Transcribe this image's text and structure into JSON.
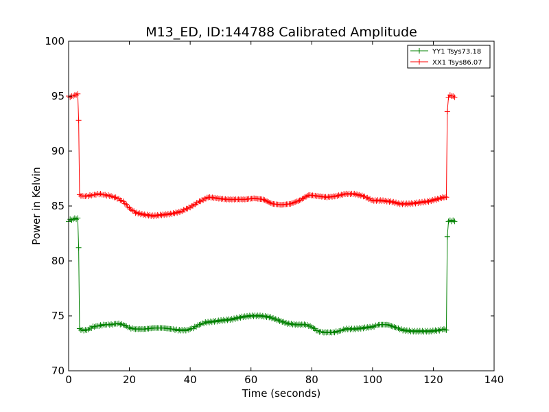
{
  "chart_data": {
    "type": "line",
    "title": "M13_ED, ID:144788 Calibrated Amplitude",
    "xlabel": "Time (seconds)",
    "ylabel": "Power in Kelvin",
    "xlim": [
      0,
      140
    ],
    "ylim": [
      70,
      100
    ],
    "xticks": [
      "0",
      "20",
      "40",
      "60",
      "80",
      "100",
      "120",
      "140"
    ],
    "yticks": [
      "70",
      "75",
      "80",
      "85",
      "90",
      "95",
      "100"
    ],
    "grid": false,
    "legend_position": "top-right",
    "series": [
      {
        "name": "YY1 Tsys73.18",
        "color": "#008000",
        "marker": "plus",
        "points": [
          [
            0.0,
            83.6
          ],
          [
            0.5,
            83.8
          ],
          [
            1.0,
            83.7
          ],
          [
            1.5,
            83.8
          ],
          [
            2.0,
            83.9
          ],
          [
            2.5,
            83.8
          ],
          [
            3.0,
            83.9
          ],
          [
            3.3,
            81.2
          ],
          [
            3.6,
            73.8
          ],
          [
            4.5,
            73.7
          ],
          [
            6.0,
            73.7
          ],
          [
            8.0,
            74.0
          ],
          [
            10.0,
            74.1
          ],
          [
            12.0,
            74.2
          ],
          [
            14.0,
            74.2
          ],
          [
            16.0,
            74.3
          ],
          [
            18.0,
            74.2
          ],
          [
            20.0,
            73.9
          ],
          [
            22.0,
            73.8
          ],
          [
            25.0,
            73.8
          ],
          [
            28.0,
            73.9
          ],
          [
            31.0,
            73.9
          ],
          [
            34.0,
            73.8
          ],
          [
            36.0,
            73.7
          ],
          [
            39.0,
            73.7
          ],
          [
            41.0,
            73.9
          ],
          [
            43.0,
            74.2
          ],
          [
            45.0,
            74.4
          ],
          [
            48.0,
            74.5
          ],
          [
            51.0,
            74.6
          ],
          [
            54.0,
            74.7
          ],
          [
            57.0,
            74.9
          ],
          [
            60.0,
            75.0
          ],
          [
            63.0,
            75.0
          ],
          [
            66.0,
            74.9
          ],
          [
            69.0,
            74.6
          ],
          [
            72.0,
            74.3
          ],
          [
            75.0,
            74.2
          ],
          [
            78.0,
            74.2
          ],
          [
            80.0,
            74.0
          ],
          [
            82.0,
            73.6
          ],
          [
            84.0,
            73.5
          ],
          [
            87.0,
            73.5
          ],
          [
            89.0,
            73.6
          ],
          [
            91.0,
            73.8
          ],
          [
            94.0,
            73.8
          ],
          [
            97.0,
            73.9
          ],
          [
            100.0,
            74.0
          ],
          [
            102.0,
            74.2
          ],
          [
            105.0,
            74.2
          ],
          [
            108.0,
            73.9
          ],
          [
            110.0,
            73.7
          ],
          [
            113.0,
            73.6
          ],
          [
            116.0,
            73.6
          ],
          [
            119.0,
            73.6
          ],
          [
            122.0,
            73.7
          ],
          [
            123.5,
            73.8
          ],
          [
            124.3,
            73.7
          ],
          [
            124.6,
            82.2
          ],
          [
            125.0,
            83.6
          ],
          [
            125.5,
            83.7
          ],
          [
            126.0,
            83.6
          ],
          [
            126.5,
            83.7
          ],
          [
            127.0,
            83.6
          ]
        ]
      },
      {
        "name": "XX1 Tsys86.07",
        "color": "#ff0000",
        "marker": "plus",
        "points": [
          [
            0.0,
            95.0
          ],
          [
            0.5,
            94.9
          ],
          [
            1.0,
            95.0
          ],
          [
            1.5,
            95.0
          ],
          [
            2.0,
            95.1
          ],
          [
            2.5,
            95.1
          ],
          [
            3.0,
            95.2
          ],
          [
            3.3,
            92.8
          ],
          [
            3.6,
            86.0
          ],
          [
            4.5,
            85.9
          ],
          [
            6.0,
            85.9
          ],
          [
            8.0,
            86.0
          ],
          [
            10.0,
            86.1
          ],
          [
            12.0,
            86.0
          ],
          [
            14.0,
            85.9
          ],
          [
            16.0,
            85.7
          ],
          [
            18.0,
            85.4
          ],
          [
            20.0,
            84.8
          ],
          [
            22.0,
            84.4
          ],
          [
            25.0,
            84.2
          ],
          [
            28.0,
            84.1
          ],
          [
            31.0,
            84.2
          ],
          [
            34.0,
            84.3
          ],
          [
            37.0,
            84.5
          ],
          [
            40.0,
            84.9
          ],
          [
            43.0,
            85.4
          ],
          [
            46.0,
            85.8
          ],
          [
            49.0,
            85.7
          ],
          [
            52.0,
            85.6
          ],
          [
            55.0,
            85.6
          ],
          [
            58.0,
            85.6
          ],
          [
            61.0,
            85.7
          ],
          [
            64.0,
            85.6
          ],
          [
            67.0,
            85.2
          ],
          [
            70.0,
            85.1
          ],
          [
            73.0,
            85.2
          ],
          [
            76.0,
            85.5
          ],
          [
            79.0,
            86.0
          ],
          [
            82.0,
            85.9
          ],
          [
            85.0,
            85.8
          ],
          [
            88.0,
            85.9
          ],
          [
            91.0,
            86.1
          ],
          [
            94.0,
            86.1
          ],
          [
            97.0,
            85.9
          ],
          [
            100.0,
            85.5
          ],
          [
            103.0,
            85.5
          ],
          [
            106.0,
            85.4
          ],
          [
            109.0,
            85.2
          ],
          [
            112.0,
            85.2
          ],
          [
            115.0,
            85.3
          ],
          [
            118.0,
            85.4
          ],
          [
            121.0,
            85.6
          ],
          [
            123.5,
            85.8
          ],
          [
            124.3,
            85.8
          ],
          [
            124.6,
            93.6
          ],
          [
            125.0,
            94.9
          ],
          [
            125.5,
            95.1
          ],
          [
            126.0,
            95.0
          ],
          [
            126.5,
            95.0
          ],
          [
            127.0,
            94.9
          ]
        ]
      }
    ]
  }
}
